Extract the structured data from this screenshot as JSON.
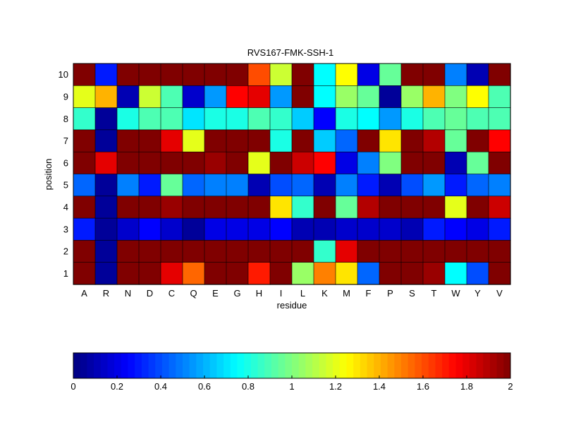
{
  "chart_data": {
    "type": "heatmap",
    "title": "RVS167-FMK-SSH-1",
    "xlabel": "residue",
    "ylabel": "position",
    "x_categories": [
      "A",
      "R",
      "N",
      "D",
      "C",
      "Q",
      "E",
      "G",
      "H",
      "I",
      "L",
      "K",
      "M",
      "F",
      "P",
      "S",
      "T",
      "W",
      "Y",
      "V"
    ],
    "y_categories": [
      "10",
      "9",
      "8",
      "7",
      "6",
      "5",
      "4",
      "3",
      "2",
      "1"
    ],
    "values": [
      [
        2.0,
        0.3,
        2.0,
        2.0,
        2.0,
        2.0,
        2.0,
        2.0,
        1.6,
        1.15,
        2.0,
        0.75,
        1.25,
        0.2,
        0.95,
        2.0,
        2.0,
        0.5,
        0.1,
        2.0
      ],
      [
        1.2,
        1.4,
        0.1,
        1.15,
        0.9,
        0.15,
        0.55,
        1.75,
        1.8,
        0.55,
        2.0,
        0.75,
        1.05,
        0.95,
        0.05,
        1.05,
        1.4,
        1.0,
        1.25,
        0.9
      ],
      [
        0.85,
        0.05,
        0.8,
        0.9,
        0.9,
        0.7,
        0.8,
        0.8,
        0.9,
        0.85,
        0.65,
        0.25,
        0.8,
        0.75,
        0.55,
        0.8,
        0.9,
        0.95,
        0.9,
        0.9
      ],
      [
        2.0,
        0.05,
        2.0,
        2.0,
        1.8,
        1.2,
        2.0,
        2.0,
        2.0,
        0.8,
        2.0,
        0.65,
        0.45,
        2.0,
        1.3,
        2.0,
        1.9,
        0.95,
        2.0,
        1.75
      ],
      [
        2.0,
        1.8,
        2.0,
        2.0,
        2.0,
        2.0,
        1.95,
        2.0,
        1.2,
        2.0,
        1.85,
        1.75,
        0.2,
        0.5,
        1.0,
        2.0,
        2.0,
        0.1,
        0.95,
        2.0
      ],
      [
        0.45,
        0.05,
        0.5,
        0.3,
        0.95,
        0.45,
        0.5,
        0.5,
        0.1,
        0.4,
        0.45,
        0.1,
        0.5,
        0.3,
        0.1,
        0.4,
        0.55,
        0.3,
        0.45,
        0.5
      ],
      [
        2.0,
        0.05,
        2.0,
        2.0,
        1.95,
        2.0,
        2.0,
        2.0,
        2.0,
        1.3,
        0.85,
        2.0,
        0.95,
        1.9,
        2.0,
        2.0,
        2.0,
        1.2,
        2.0,
        1.85
      ],
      [
        0.3,
        0.05,
        0.15,
        0.25,
        0.15,
        0.05,
        0.2,
        0.2,
        0.2,
        0.25,
        0.1,
        0.1,
        0.15,
        0.15,
        0.15,
        0.1,
        0.3,
        0.25,
        0.2,
        0.3
      ],
      [
        2.0,
        0.05,
        2.0,
        2.0,
        2.0,
        2.0,
        2.0,
        2.0,
        2.0,
        2.0,
        2.0,
        0.85,
        1.8,
        2.0,
        2.0,
        2.0,
        2.0,
        2.0,
        2.0,
        2.0
      ],
      [
        2.0,
        0.05,
        2.0,
        2.0,
        1.8,
        1.55,
        2.0,
        2.0,
        1.7,
        2.0,
        1.05,
        1.5,
        1.3,
        0.45,
        2.0,
        2.0,
        1.95,
        0.75,
        0.4,
        2.0
      ]
    ],
    "colorbar": {
      "colormap": "jet",
      "min": 0,
      "max": 2,
      "ticks": [
        "0",
        "0.2",
        "0.4",
        "0.6",
        "0.8",
        "1",
        "1.2",
        "1.4",
        "1.6",
        "1.8",
        "2"
      ],
      "orientation": "horizontal"
    }
  }
}
